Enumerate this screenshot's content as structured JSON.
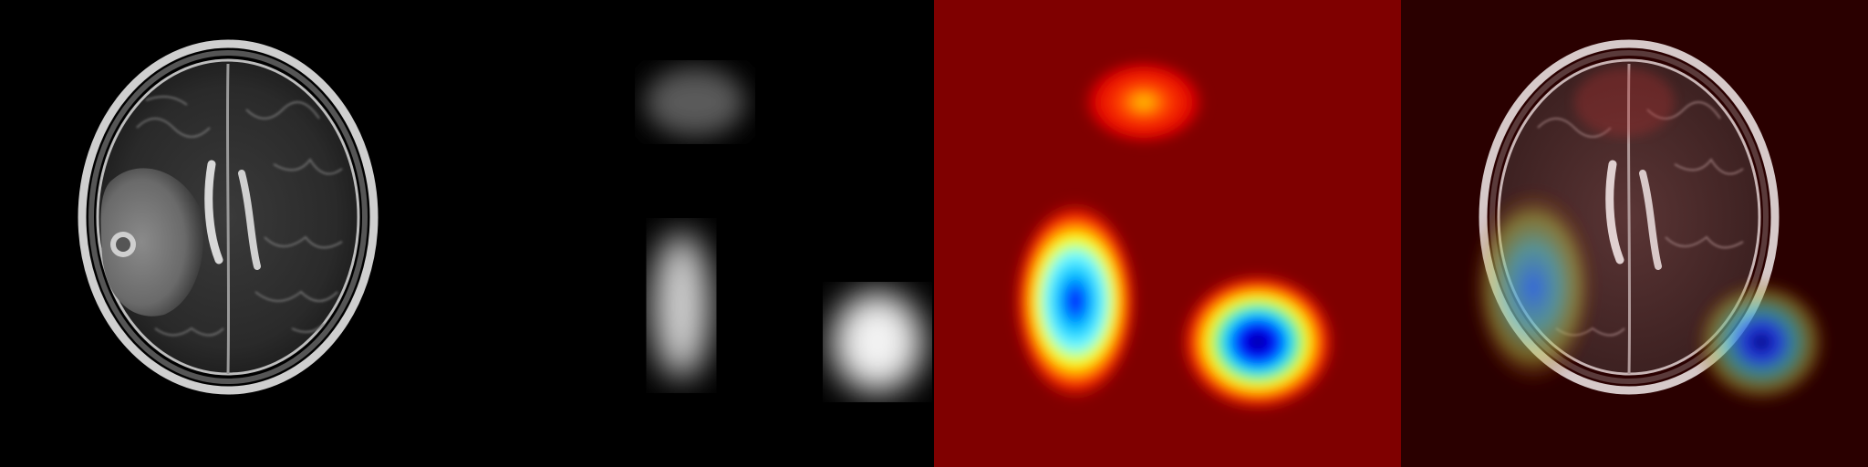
{
  "panels": [
    {
      "id": "mri",
      "kind": "grayscale-mri-axial",
      "background": "#000000"
    },
    {
      "id": "saliency-gray",
      "kind": "grayscale-attention-map",
      "background": "#000000"
    },
    {
      "id": "saliency-jet",
      "kind": "jet-colormap-attention-map",
      "background": "#7f0000"
    },
    {
      "id": "overlay",
      "kind": "mri-with-heatmap-overlay",
      "background": "#2a0000"
    }
  ],
  "colormap": {
    "name": "jet",
    "stops": [
      "#00007f",
      "#0000ff",
      "#00ffff",
      "#ffff00",
      "#ff0000",
      "#7f0000"
    ]
  }
}
